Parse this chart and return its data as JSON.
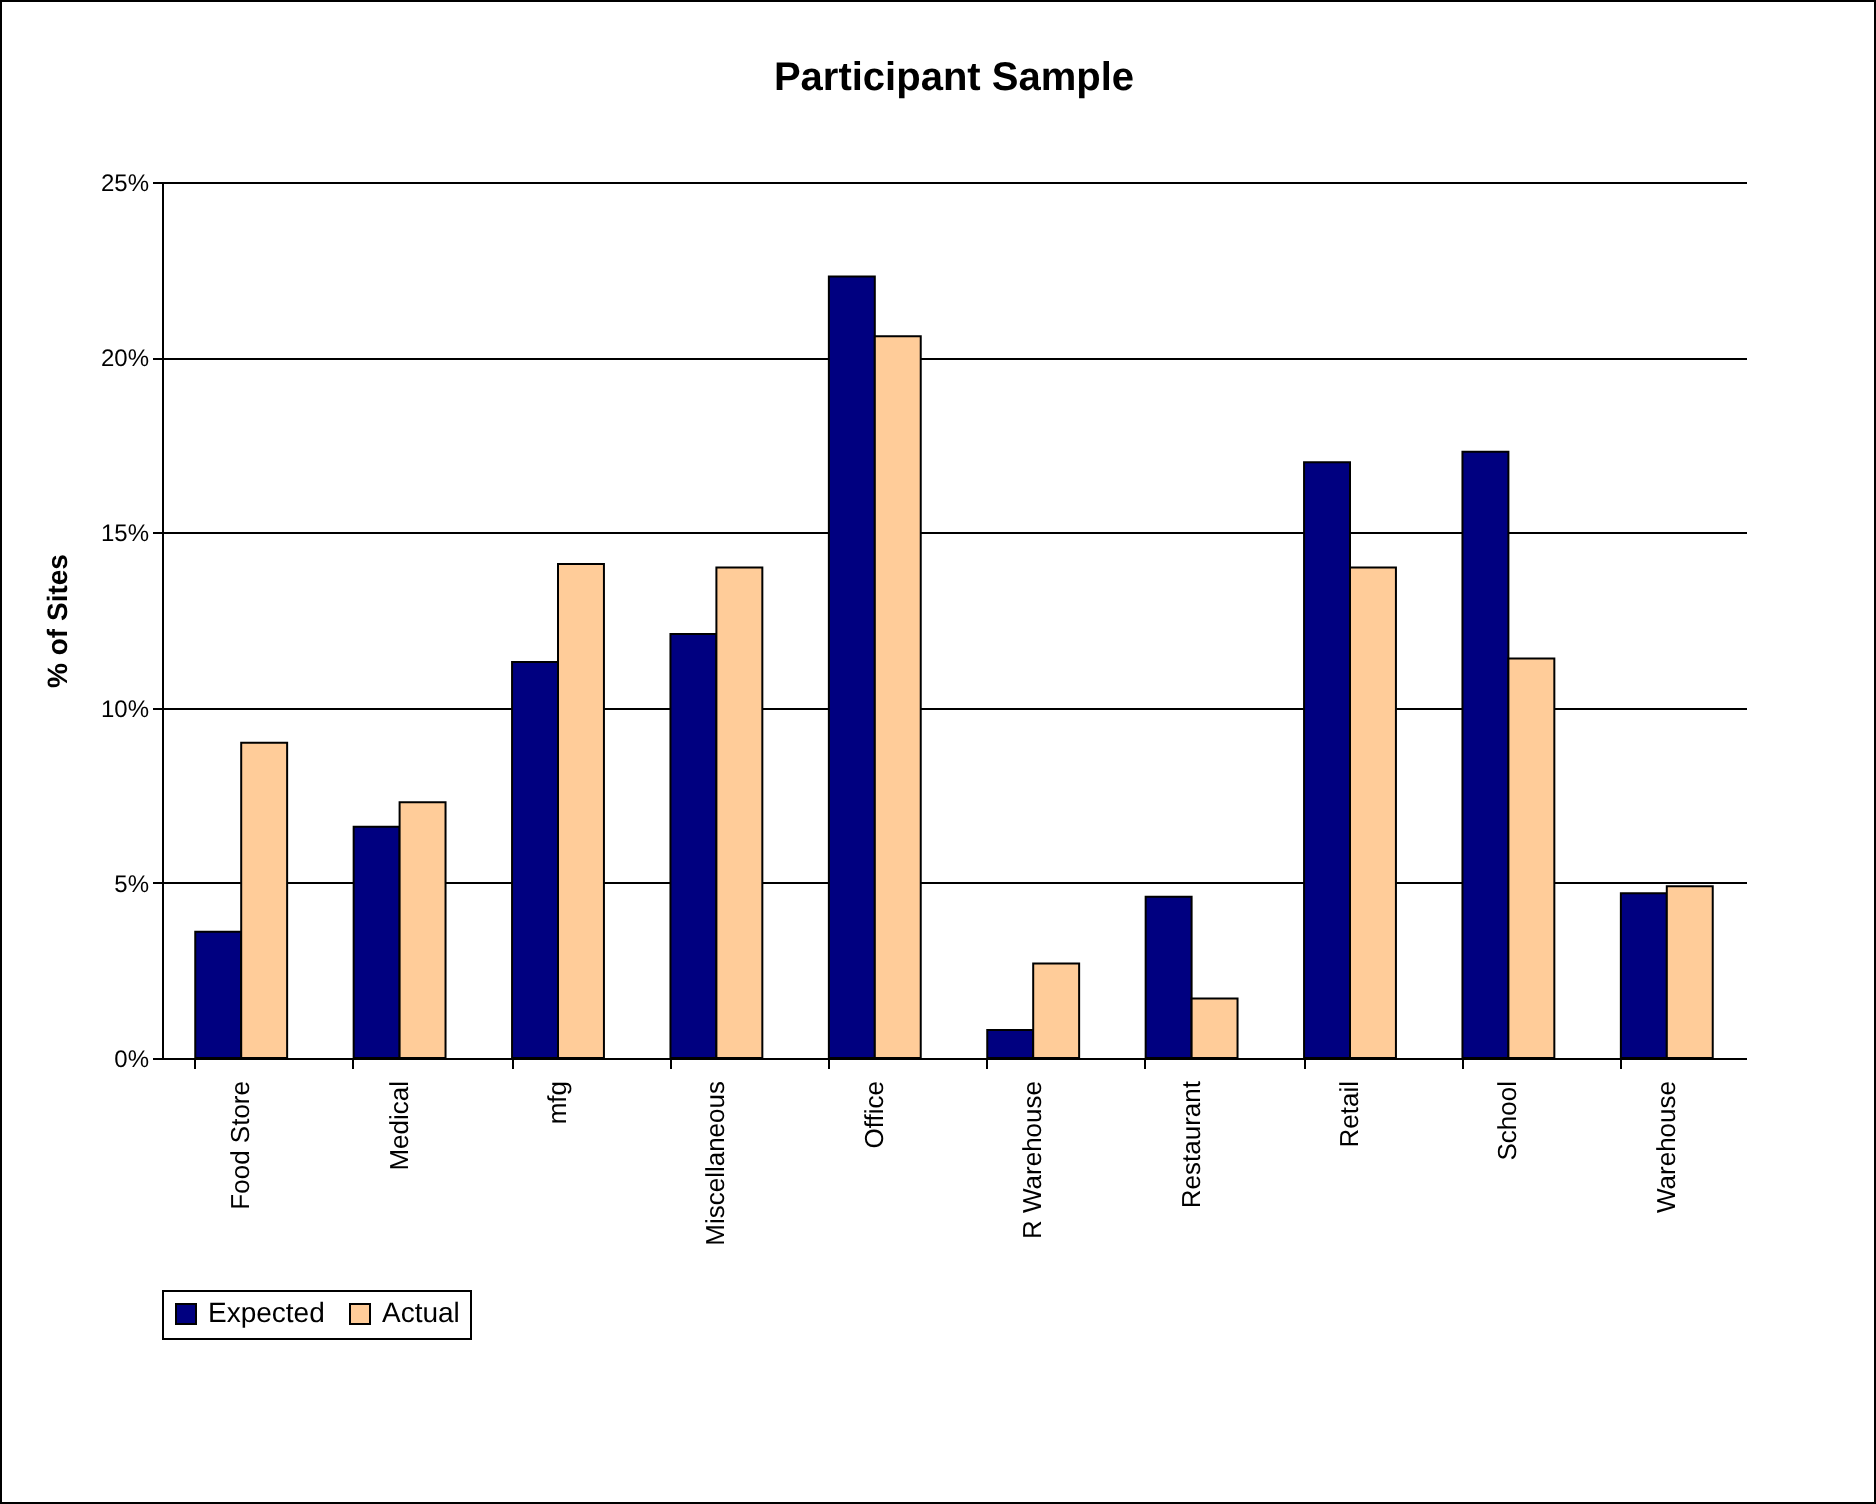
{
  "chart_data": {
    "type": "bar",
    "title": "Participant Sample",
    "ylabel": "% of Sites",
    "categories": [
      "Food Store",
      "Medical",
      "mfg",
      "Miscellaneous",
      "Office",
      "R Warehouse",
      "Restaurant",
      "Retail",
      "School",
      "Warehouse"
    ],
    "series": [
      {
        "name": "Expected",
        "color": "#000080",
        "values": [
          3.6,
          6.6,
          11.3,
          12.1,
          22.3,
          0.8,
          4.6,
          17.0,
          17.3,
          4.7
        ]
      },
      {
        "name": "Actual",
        "color": "#ffcc99",
        "values": [
          9.0,
          7.3,
          14.1,
          14.0,
          20.6,
          2.7,
          1.7,
          14.0,
          11.4,
          4.9
        ]
      }
    ],
    "ylim": [
      0,
      25
    ],
    "yticks": [
      {
        "value": 0,
        "label": "0%"
      },
      {
        "value": 5,
        "label": "5%"
      },
      {
        "value": 10,
        "label": "10%"
      },
      {
        "value": 15,
        "label": "15%"
      },
      {
        "value": 20,
        "label": "20%"
      },
      {
        "value": 25,
        "label": "25%"
      }
    ],
    "grid": "y",
    "legend": "bottom"
  }
}
